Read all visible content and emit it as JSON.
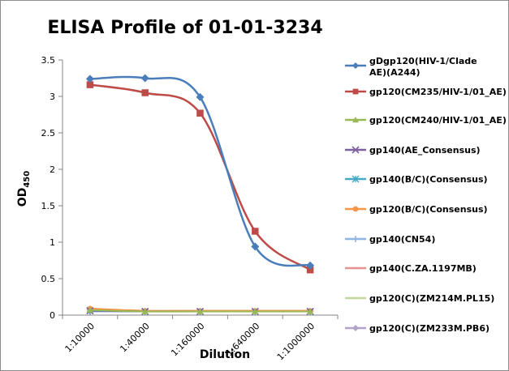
{
  "chart_data": {
    "type": "line",
    "title": "ELISA Profile of 01-01-3234",
    "xlabel": "Dilution",
    "ylabel": "OD",
    "ylabel_sub": "450",
    "ylim": [
      0,
      3.5
    ],
    "yticks": [
      "0",
      "0.5",
      "1",
      "1.5",
      "2",
      "2.5",
      "3",
      "3.5"
    ],
    "grid": false,
    "legend_position": "right",
    "categories": [
      "1:10000",
      "1:40000",
      "1:160000",
      "1:640000",
      "1:1000000"
    ],
    "series": [
      {
        "name": "gDgp120(HIV-1/Clade AE)(A244)",
        "color": "#4a7ebb",
        "marker": "diamond",
        "values": [
          3.24,
          3.25,
          2.99,
          0.94,
          0.68
        ]
      },
      {
        "name": "gp120(CM235/HIV-1/01_AE)",
        "color": "#be4b48",
        "marker": "square",
        "values": [
          3.16,
          3.05,
          2.77,
          1.15,
          0.62
        ]
      },
      {
        "name": "gp120(CM240/HIV-1/01_AE)",
        "color": "#98b954",
        "marker": "triangle",
        "values": [
          0.07,
          0.05,
          0.05,
          0.05,
          0.05
        ]
      },
      {
        "name": "gp140(AE_Consensus)",
        "color": "#7d60a0",
        "marker": "x",
        "values": [
          0.06,
          0.05,
          0.05,
          0.05,
          0.05
        ]
      },
      {
        "name": "gp140(B/C)(Consensus)",
        "color": "#46aac5",
        "marker": "star",
        "values": [
          0.06,
          0.05,
          0.05,
          0.05,
          0.05
        ]
      },
      {
        "name": "gp120(B/C)(Consensus)",
        "color": "#f79646",
        "marker": "circle",
        "values": [
          0.09,
          0.06,
          0.06,
          0.06,
          0.06
        ]
      },
      {
        "name": "gp140(CN54)",
        "color": "#8eb4e3",
        "marker": "plus",
        "values": [
          0.05,
          0.05,
          0.05,
          0.05,
          0.05
        ]
      },
      {
        "name": "gp140(C.ZA.1197MB)",
        "color": "#e6928f",
        "marker": "dash",
        "values": [
          0.08,
          0.06,
          0.06,
          0.06,
          0.06
        ]
      },
      {
        "name": "gp120(C)(ZM214M.PL15)",
        "color": "#c3d69b",
        "marker": "dash",
        "values": [
          0.06,
          0.05,
          0.05,
          0.05,
          0.05
        ]
      },
      {
        "name": "gp120(C)(ZM233M.PB6)",
        "color": "#b3a2c7",
        "marker": "diamond",
        "values": [
          0.05,
          0.05,
          0.05,
          0.05,
          0.05
        ]
      }
    ]
  }
}
